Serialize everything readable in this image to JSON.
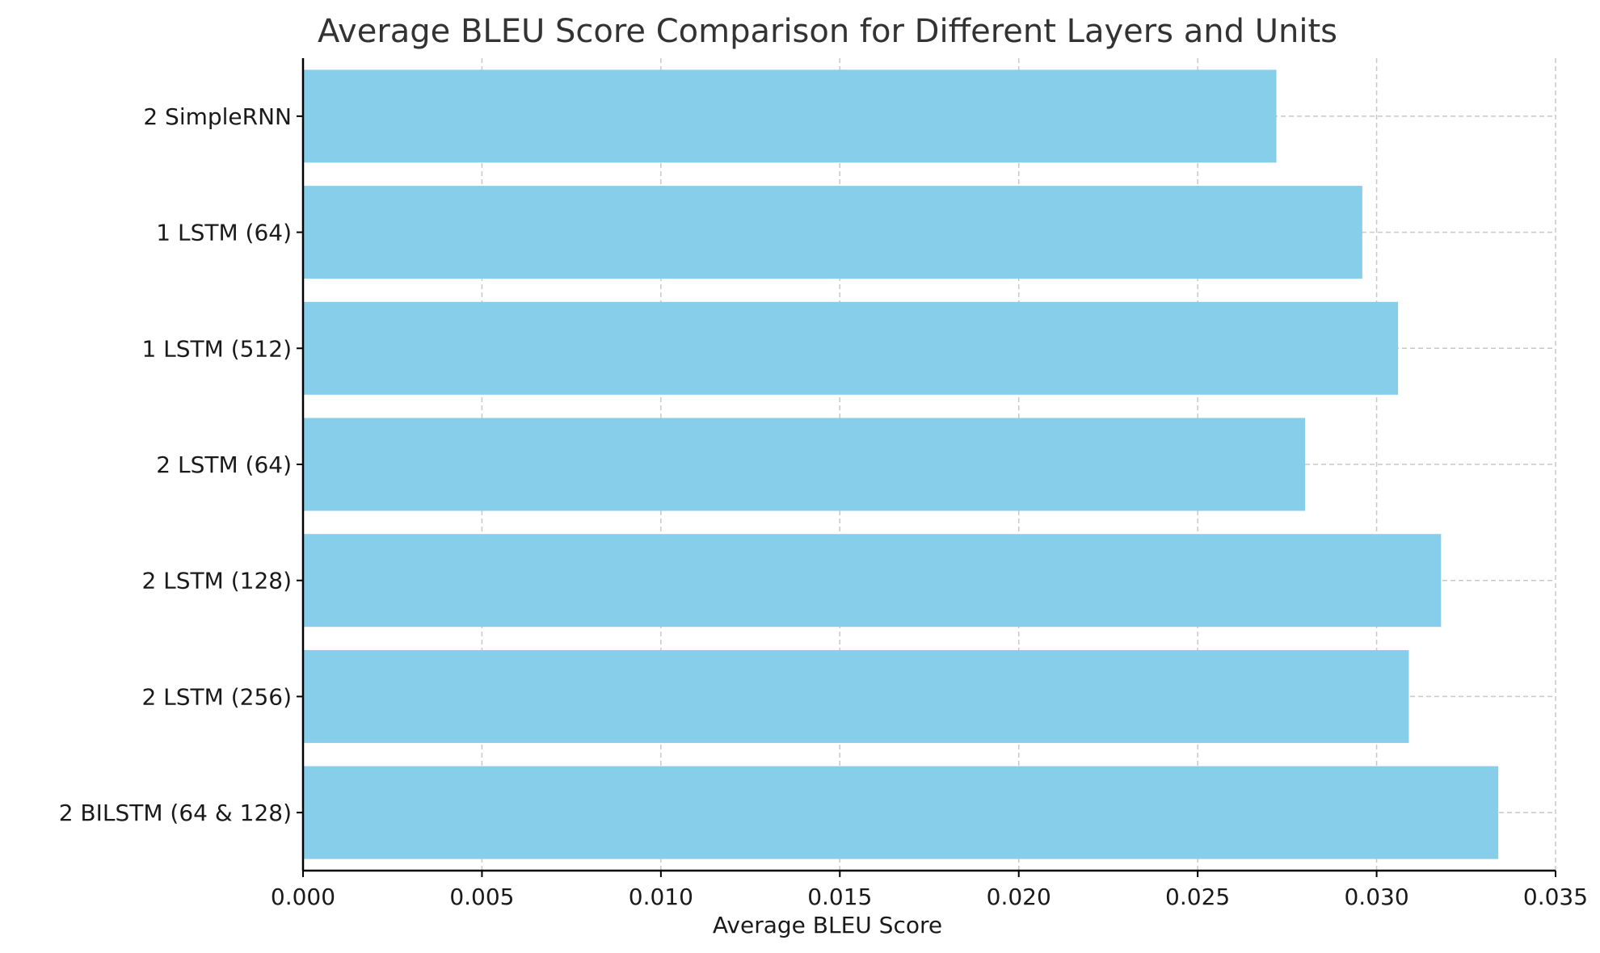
{
  "chart_data": {
    "type": "bar",
    "orientation": "horizontal",
    "title": "Average BLEU Score Comparison for Different Layers and Units",
    "xlabel": "Average BLEU Score",
    "ylabel": "",
    "categories": [
      "2 SimpleRNN",
      "1 LSTM (64)",
      "1 LSTM (512)",
      "2 LSTM (64)",
      "2 LSTM (128)",
      "2 LSTM (256)",
      "2 BILSTM (64 & 128)"
    ],
    "values": [
      0.0272,
      0.0296,
      0.0306,
      0.028,
      0.0318,
      0.0309,
      0.0334
    ],
    "xlim": [
      0,
      0.035
    ],
    "xticks": [
      "0.000",
      "0.005",
      "0.010",
      "0.015",
      "0.020",
      "0.025",
      "0.030",
      "0.035"
    ],
    "bar_color": "#87CEEB",
    "grid": true,
    "legend": "none"
  }
}
